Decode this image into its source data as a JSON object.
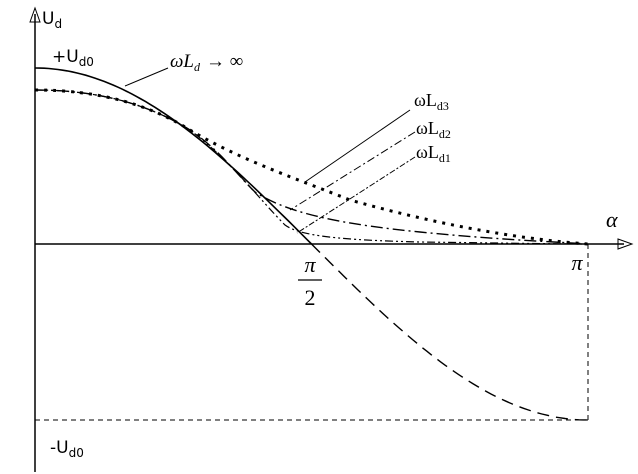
{
  "y_axis_label": {
    "main": "U",
    "sub": "d"
  },
  "x_axis_label": "α",
  "plus_level": {
    "main": "+U",
    "sub": "d0"
  },
  "minus_level": {
    "main": "-U",
    "sub": "d0"
  },
  "infinite_label": {
    "main": "ωL",
    "sub": "d",
    "rest": "→ ∞"
  },
  "curve_labels": [
    {
      "main": "ωL",
      "sub": "d3"
    },
    {
      "main": "ωL",
      "sub": "d2"
    },
    {
      "main": "ωL",
      "sub": "d1"
    }
  ],
  "ticks": {
    "half_pi": {
      "numerator": "π",
      "denominator": "2"
    },
    "pi": "π"
  }
}
